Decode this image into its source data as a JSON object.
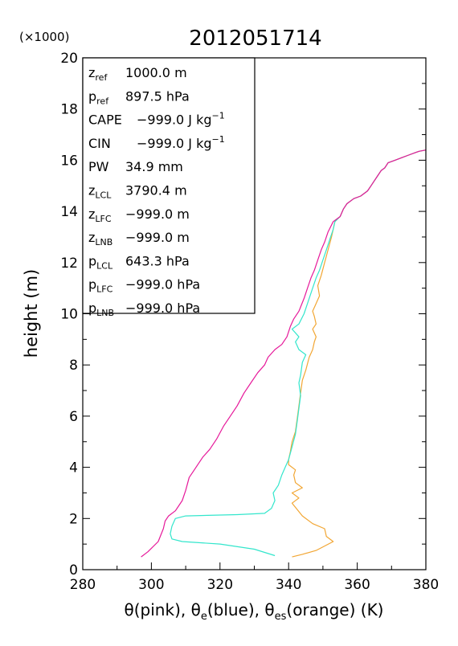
{
  "chart_data": {
    "type": "line",
    "title": "2012051714",
    "multiplier_label": "(×1000)",
    "xlabel": "θ(pink), θ<sub>e</sub>(blue), θ<sub>es</sub>(orange)   (K)",
    "xlabel_parts": [
      "θ(pink), θ",
      "e",
      "(blue), θ",
      "es",
      "(orange)   (K)"
    ],
    "ylabel": "height (m)",
    "xlim": [
      280,
      380
    ],
    "ylim": [
      0,
      20
    ],
    "xticks": [
      "280",
      "300",
      "320",
      "340",
      "360",
      "380"
    ],
    "yticks": [
      "0",
      "2",
      "4",
      "6",
      "8",
      "10",
      "12",
      "14",
      "16",
      "18",
      "20"
    ],
    "grid": false,
    "colors": {
      "theta": "#e6199a",
      "theta_e": "#33e6cc",
      "theta_es": "#f2a633",
      "merged": "#7d8c4d"
    },
    "info_box": [
      {
        "sym": "z",
        "sub": "ref",
        "value": "1000.0 m"
      },
      {
        "sym": "p",
        "sub": "ref",
        "value": "897.5 hPa"
      },
      {
        "sym": "CAPE",
        "sub": "",
        "value": "−999.0 J kg",
        "sup": "−1"
      },
      {
        "sym": "CIN",
        "sub": "",
        "value": "−999.0 J kg",
        "sup": "−1"
      },
      {
        "sym": "PW",
        "sub": "",
        "value": "34.9 mm"
      },
      {
        "sym": "z",
        "sub": "LCL",
        "value": "3790.4 m"
      },
      {
        "sym": "z",
        "sub": "LFC",
        "value": "−999.0 m"
      },
      {
        "sym": "z",
        "sub": "LNB",
        "value": "−999.0 m"
      },
      {
        "sym": "p",
        "sub": "LCL",
        "value": "643.3 hPa"
      },
      {
        "sym": "p",
        "sub": "LFC",
        "value": "−999.0 hPa"
      },
      {
        "sym": "p",
        "sub": "LNB",
        "value": "−999.0 hPa"
      }
    ],
    "series": [
      {
        "name": "θ(pink)",
        "points": [
          [
            297,
            0.5
          ],
          [
            299,
            0.7
          ],
          [
            302,
            1.1
          ],
          [
            303.5,
            1.6
          ],
          [
            304,
            1.9
          ],
          [
            305,
            2.1
          ],
          [
            307,
            2.3
          ],
          [
            309,
            2.7
          ],
          [
            310,
            3.1
          ],
          [
            311,
            3.6
          ],
          [
            312.5,
            3.9
          ],
          [
            314,
            4.2
          ],
          [
            315,
            4.4
          ],
          [
            317,
            4.7
          ],
          [
            319,
            5.1
          ],
          [
            321,
            5.6
          ],
          [
            323,
            6.0
          ],
          [
            325,
            6.4
          ],
          [
            327,
            6.9
          ],
          [
            329,
            7.3
          ],
          [
            331,
            7.7
          ],
          [
            333,
            8.0
          ],
          [
            334,
            8.3
          ],
          [
            336,
            8.6
          ],
          [
            338,
            8.8
          ],
          [
            339.5,
            9.1
          ],
          [
            340.5,
            9.5
          ],
          [
            341.5,
            9.8
          ],
          [
            343,
            10.1
          ],
          [
            344.5,
            10.6
          ],
          [
            345.5,
            11.0
          ],
          [
            346.5,
            11.4
          ],
          [
            347.5,
            11.7
          ],
          [
            348.5,
            12.1
          ],
          [
            349.5,
            12.5
          ],
          [
            350.5,
            12.8
          ],
          [
            351.5,
            13.2
          ],
          [
            353,
            13.6
          ],
          [
            355,
            13.8
          ],
          [
            356,
            14.1
          ],
          [
            357,
            14.3
          ],
          [
            359,
            14.5
          ],
          [
            361,
            14.6
          ],
          [
            363,
            14.8
          ],
          [
            364,
            15.0
          ],
          [
            365,
            15.2
          ],
          [
            366,
            15.4
          ],
          [
            367,
            15.6
          ],
          [
            368,
            15.7
          ],
          [
            369,
            15.9
          ],
          [
            371,
            16.0
          ],
          [
            373,
            16.1
          ],
          [
            375,
            16.2
          ],
          [
            377,
            16.3
          ],
          [
            378,
            16.35
          ],
          [
            380,
            16.4
          ]
        ]
      },
      {
        "name": "θe(blue)",
        "points": [
          [
            336,
            0.55
          ],
          [
            330,
            0.8
          ],
          [
            320,
            1.0
          ],
          [
            309,
            1.1
          ],
          [
            306,
            1.2
          ],
          [
            305.5,
            1.4
          ],
          [
            306,
            1.7
          ],
          [
            307,
            2.0
          ],
          [
            310,
            2.1
          ],
          [
            325,
            2.15
          ],
          [
            333,
            2.2
          ],
          [
            335,
            2.4
          ],
          [
            336,
            2.7
          ],
          [
            335.5,
            3.0
          ],
          [
            337,
            3.3
          ],
          [
            338,
            3.7
          ],
          [
            339,
            4.0
          ],
          [
            340,
            4.3
          ],
          [
            341,
            4.8
          ],
          [
            342,
            5.3
          ],
          [
            342.5,
            5.8
          ],
          [
            343,
            6.3
          ],
          [
            343.5,
            6.8
          ],
          [
            343,
            7.3
          ],
          [
            343.5,
            7.6
          ],
          [
            344,
            8.1
          ],
          [
            345,
            8.4
          ],
          [
            343,
            8.6
          ],
          [
            342,
            8.9
          ],
          [
            343,
            9.1
          ],
          [
            341,
            9.4
          ],
          [
            343,
            9.6
          ],
          [
            344.5,
            10.0
          ],
          [
            346,
            10.6
          ],
          [
            347,
            11.0
          ],
          [
            348,
            11.4
          ],
          [
            349,
            11.7
          ],
          [
            350,
            12.1
          ],
          [
            351,
            12.5
          ],
          [
            352,
            12.9
          ],
          [
            353,
            13.3
          ],
          [
            353.5,
            13.6
          ],
          [
            355,
            13.8
          ],
          [
            356,
            14.1
          ],
          [
            357,
            14.3
          ],
          [
            359,
            14.5
          ],
          [
            361,
            14.6
          ],
          [
            363,
            14.8
          ],
          [
            364,
            15.0
          ],
          [
            365,
            15.2
          ],
          [
            366,
            15.4
          ],
          [
            367,
            15.6
          ],
          [
            368,
            15.7
          ],
          [
            369,
            15.9
          ],
          [
            371,
            16.0
          ],
          [
            373,
            16.1
          ],
          [
            375,
            16.2
          ],
          [
            377,
            16.3
          ],
          [
            378,
            16.35
          ],
          [
            380,
            16.4
          ]
        ]
      },
      {
        "name": "θes(orange)",
        "points": [
          [
            341,
            0.5
          ],
          [
            344,
            0.6
          ],
          [
            348,
            0.75
          ],
          [
            353,
            1.1
          ],
          [
            351,
            1.3
          ],
          [
            350.5,
            1.6
          ],
          [
            347,
            1.8
          ],
          [
            344,
            2.1
          ],
          [
            341,
            2.6
          ],
          [
            343,
            2.8
          ],
          [
            341,
            3.0
          ],
          [
            344,
            3.2
          ],
          [
            342,
            3.4
          ],
          [
            341.5,
            3.7
          ],
          [
            342,
            3.9
          ],
          [
            340,
            4.1
          ],
          [
            340,
            4.3
          ],
          [
            340.5,
            4.6
          ],
          [
            341,
            5.0
          ],
          [
            342,
            5.4
          ],
          [
            342.5,
            5.9
          ],
          [
            343,
            6.4
          ],
          [
            343.5,
            6.9
          ],
          [
            344,
            7.4
          ],
          [
            345,
            7.8
          ],
          [
            346,
            8.3
          ],
          [
            347,
            8.6
          ],
          [
            347.5,
            8.9
          ],
          [
            348,
            9.1
          ],
          [
            347,
            9.4
          ],
          [
            348,
            9.6
          ],
          [
            347.5,
            9.9
          ],
          [
            347,
            10.1
          ],
          [
            348,
            10.4
          ],
          [
            349,
            10.7
          ],
          [
            348.5,
            11.1
          ],
          [
            349.5,
            11.5
          ],
          [
            350.5,
            12.0
          ],
          [
            351.5,
            12.5
          ],
          [
            352.5,
            13.0
          ],
          [
            353.5,
            13.6
          ],
          [
            355,
            13.8
          ],
          [
            356,
            14.1
          ],
          [
            357,
            14.3
          ],
          [
            359,
            14.5
          ],
          [
            361,
            14.6
          ],
          [
            363,
            14.8
          ],
          [
            364,
            15.0
          ],
          [
            365,
            15.2
          ],
          [
            366,
            15.4
          ],
          [
            367,
            15.6
          ],
          [
            368,
            15.7
          ],
          [
            369,
            15.9
          ],
          [
            371,
            16.0
          ],
          [
            373,
            16.1
          ],
          [
            375,
            16.2
          ],
          [
            377,
            16.3
          ],
          [
            378,
            16.35
          ],
          [
            380,
            16.4
          ]
        ]
      }
    ]
  }
}
